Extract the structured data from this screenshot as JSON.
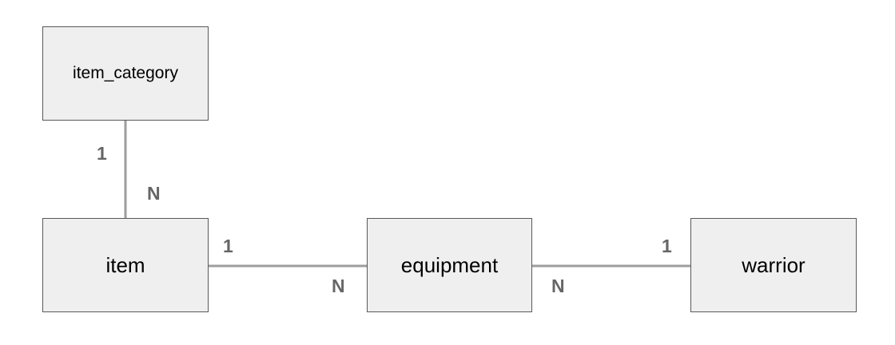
{
  "entities": {
    "item_category": "item_category",
    "item": "item",
    "equipment": "equipment",
    "warrior": "warrior"
  },
  "relationships": [
    {
      "from": "item_category",
      "to": "item",
      "from_cardinality": "1",
      "to_cardinality": "N"
    },
    {
      "from": "item",
      "to": "equipment",
      "from_cardinality": "1",
      "to_cardinality": "N"
    },
    {
      "from": "warrior",
      "to": "equipment",
      "from_cardinality": "1",
      "to_cardinality": "N"
    }
  ],
  "colors": {
    "box_fill": "#efefef",
    "box_border": "#595959",
    "line": "#9e9e9e",
    "cardinality_text": "#666666"
  }
}
